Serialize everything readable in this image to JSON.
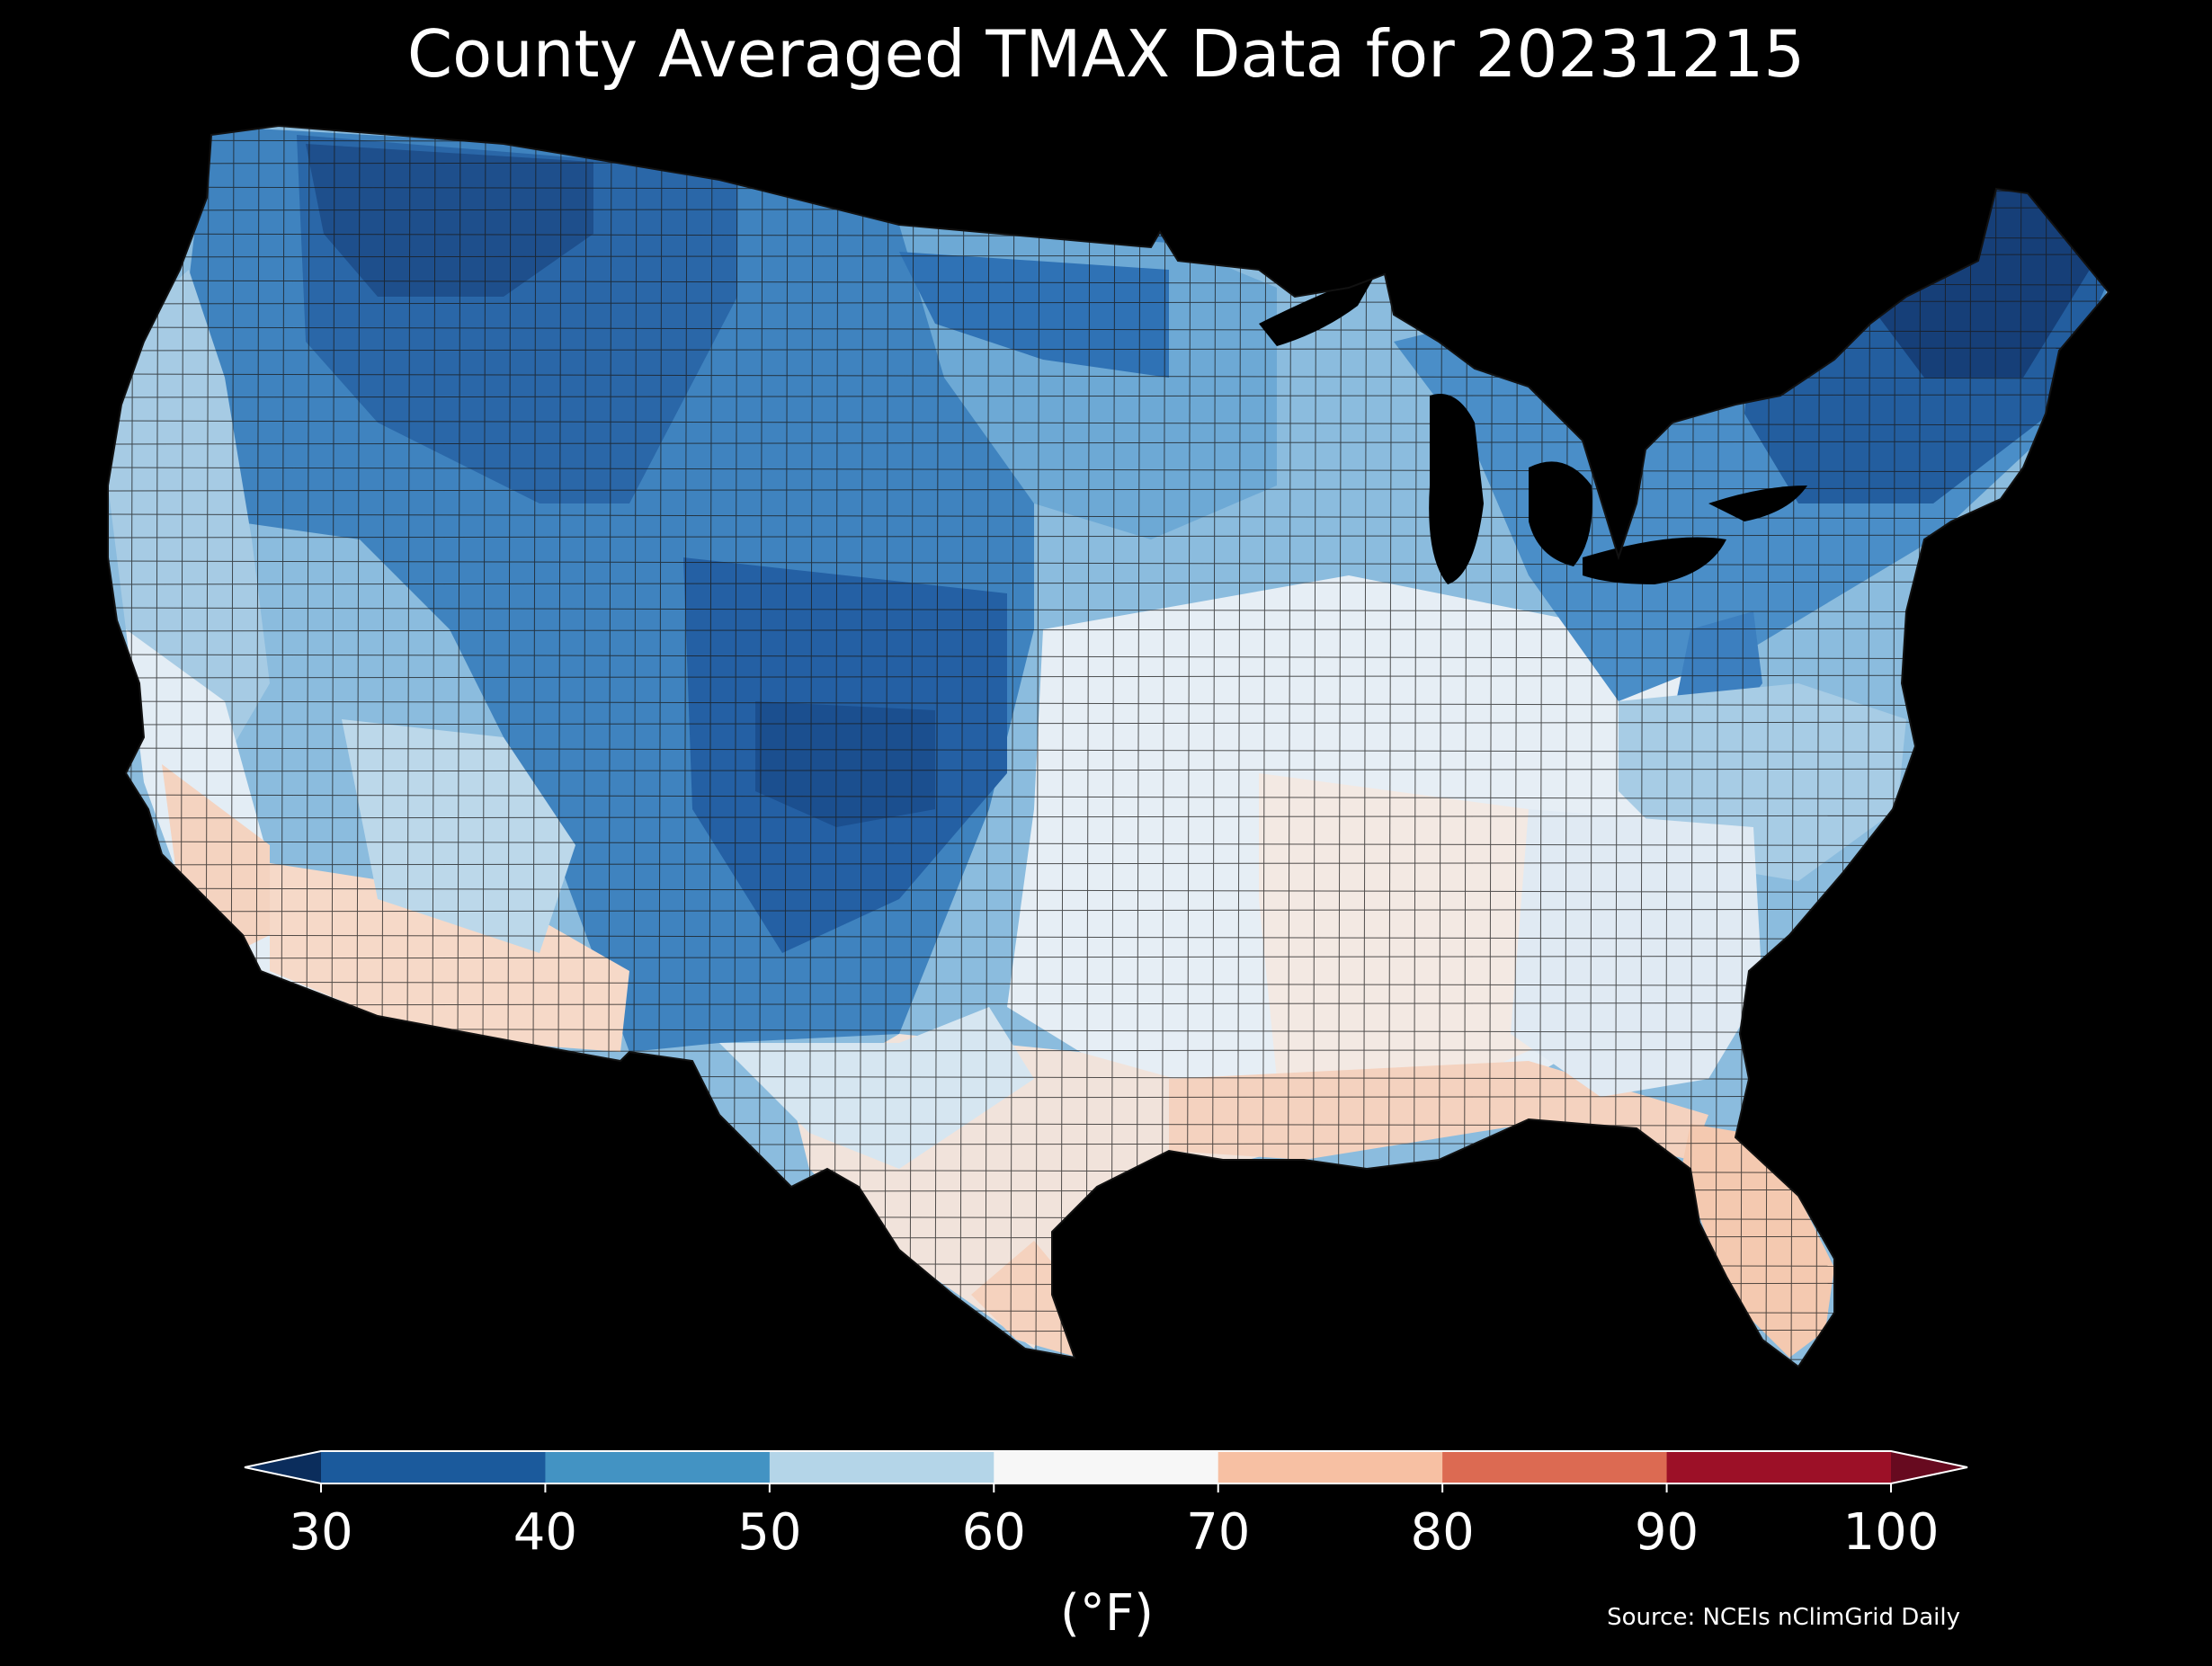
{
  "title": "County Averaged TMAX Data for 20231215",
  "map": {
    "region": "Contiguous United States counties",
    "variable": "TMAX",
    "border_color": "#1a1a1a",
    "background_color": "#000000",
    "temperature_zones": [
      {
        "name": "northern-rockies-cold",
        "value_range": [
          30,
          40
        ],
        "color": "#1e5a9c"
      },
      {
        "name": "west-interior",
        "value_range": [
          40,
          50
        ],
        "color": "#4a90c8"
      },
      {
        "name": "great-plains",
        "value_range": [
          40,
          50
        ],
        "color": "#5c9ccf"
      },
      {
        "name": "upper-midwest",
        "value_range": [
          50,
          60
        ],
        "color": "#8bbcde"
      },
      {
        "name": "northeast-cold",
        "value_range": [
          30,
          40
        ],
        "color": "#1f5c9e"
      },
      {
        "name": "mid-atlantic",
        "value_range": [
          40,
          50
        ],
        "color": "#6aa7d6"
      },
      {
        "name": "central-mid-south",
        "value_range": [
          60,
          70
        ],
        "color": "#eef3f7"
      },
      {
        "name": "gulf-coast",
        "value_range": [
          70,
          80
        ],
        "color": "#f7d6c4"
      },
      {
        "name": "florida",
        "value_range": [
          70,
          80
        ],
        "color": "#f6c9b0"
      },
      {
        "name": "southwest-desert",
        "value_range": [
          70,
          80
        ],
        "color": "#f7d8c8"
      },
      {
        "name": "southern-california",
        "value_range": [
          70,
          80
        ],
        "color": "#f5d1bd"
      }
    ]
  },
  "colorbar": {
    "ticks": [
      "30",
      "40",
      "50",
      "60",
      "70",
      "80",
      "90",
      "100"
    ],
    "bins": [
      {
        "range": [
          30,
          40
        ],
        "color": "#1b5a9c"
      },
      {
        "range": [
          40,
          50
        ],
        "color": "#4393c3"
      },
      {
        "range": [
          50,
          60
        ],
        "color": "#b4d5e8"
      },
      {
        "range": [
          60,
          70
        ],
        "color": "#f7f7f7"
      },
      {
        "range": [
          70,
          80
        ],
        "color": "#f7c0a3"
      },
      {
        "range": [
          80,
          90
        ],
        "color": "#dc6a52"
      },
      {
        "range": [
          90,
          100
        ],
        "color": "#9c1027"
      }
    ],
    "under_color": "#0b2d5c",
    "over_color": "#670a1f",
    "unit_label": "(°F)"
  },
  "source": "Source: NCEIs nClimGrid Daily"
}
